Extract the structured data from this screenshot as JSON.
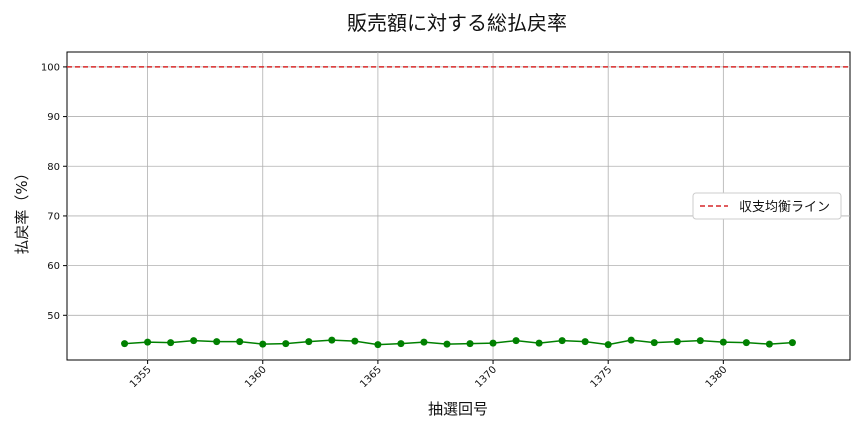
{
  "chart_data": {
    "type": "line",
    "title": "販売額に対する総払戻率",
    "xlabel": "抽選回号",
    "ylabel": "払戻率（%）",
    "xlim": [
      1351.5,
      1385.5
    ],
    "ylim": [
      41,
      103
    ],
    "x_ticks": [
      1355,
      1360,
      1365,
      1370,
      1375,
      1380
    ],
    "y_ticks": [
      50,
      60,
      70,
      80,
      90,
      100
    ],
    "grid": true,
    "legend_position": "center-right",
    "series": [
      {
        "color": "#008000",
        "x": [
          1354,
          1355,
          1356,
          1357,
          1358,
          1359,
          1360,
          1361,
          1362,
          1363,
          1364,
          1365,
          1366,
          1367,
          1368,
          1369,
          1370,
          1371,
          1372,
          1373,
          1374,
          1375,
          1376,
          1377,
          1378,
          1379,
          1380,
          1381,
          1382,
          1383
        ],
        "values": [
          44.3,
          44.6,
          44.5,
          44.9,
          44.7,
          44.7,
          44.2,
          44.3,
          44.7,
          45.0,
          44.8,
          44.1,
          44.3,
          44.6,
          44.2,
          44.3,
          44.4,
          44.9,
          44.4,
          44.9,
          44.7,
          44.1,
          45.0,
          44.5,
          44.7,
          44.9,
          44.6,
          44.5,
          44.2,
          44.5
        ]
      }
    ],
    "reference_line": {
      "name": "収支均衡ライン",
      "value": 100,
      "color": "#d62728",
      "style": "dashed"
    }
  }
}
